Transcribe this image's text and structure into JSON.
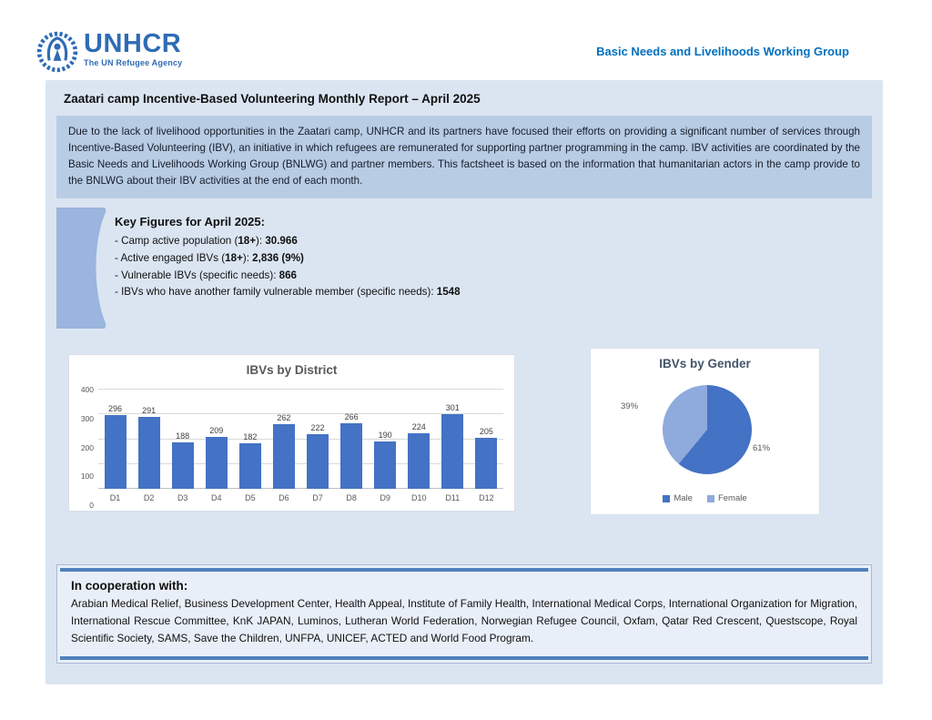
{
  "colors": {
    "unhcr_blue": "#2e6cb5",
    "header_link_blue": "#0070c0",
    "panel_bg": "#dbe5f2",
    "paragraph_bg": "#b8cce4",
    "shape_blue": "#9ab5de",
    "bar_blue": "#4472c4",
    "male_blue": "#4472c4",
    "female_blue": "#8faadc",
    "coop_rule_blue": "#4f81bd"
  },
  "header": {
    "logo_text": "UNHCR",
    "logo_tagline": "The UN Refugee Agency",
    "working_group": "Basic Needs and Livelihoods Working Group"
  },
  "report": {
    "title": "Zaatari camp Incentive-Based Volunteering Monthly Report – April 2025",
    "intro": "Due to the lack of livelihood opportunities in the Zaatari camp, UNHCR and its partners have focused their efforts on providing a significant number of services through Incentive-Based Volunteering (IBV), an initiative in which refugees are remunerated for supporting partner programming in the camp. IBV activities are coordinated by the Basic Needs and Livelihoods Working Group (BNLWG) and partner members. This factsheet is based on the information that humanitarian actors in the camp provide to the BNLWG about their IBV activities at the end of each month."
  },
  "key_figures": {
    "heading": "Key Figures for April 2025:",
    "items": [
      {
        "segments": [
          {
            "text": "- Camp active population (",
            "bold": false
          },
          {
            "text": "18+",
            "bold": true
          },
          {
            "text": "): ",
            "bold": false
          },
          {
            "text": "30.966",
            "bold": true
          }
        ]
      },
      {
        "segments": [
          {
            "text": "- Active engaged IBVs (",
            "bold": false
          },
          {
            "text": "18+",
            "bold": true
          },
          {
            "text": "): ",
            "bold": false
          },
          {
            "text": "2,836 (9%)",
            "bold": true
          }
        ]
      },
      {
        "segments": [
          {
            "text": "- Vulnerable IBVs (specific needs): ",
            "bold": false
          },
          {
            "text": "866",
            "bold": true
          }
        ]
      },
      {
        "segments": [
          {
            "text": "- IBVs who have another family vulnerable member (specific needs): ",
            "bold": false
          },
          {
            "text": "1548",
            "bold": true
          }
        ]
      }
    ]
  },
  "chart_data": [
    {
      "type": "bar",
      "title": "IBVs by District",
      "categories": [
        "D1",
        "D2",
        "D3",
        "D4",
        "D5",
        "D6",
        "D7",
        "D8",
        "D9",
        "D10",
        "D11",
        "D12"
      ],
      "values": [
        296,
        291,
        188,
        209,
        182,
        262,
        222,
        266,
        190,
        224,
        301,
        205
      ],
      "xlabel": "",
      "ylabel": "",
      "ylim": [
        0,
        400
      ],
      "yticks": [
        0,
        100,
        200,
        300,
        400
      ],
      "grid": true,
      "bar_color": "#4472c4",
      "data_labels": true
    },
    {
      "type": "pie",
      "title": "IBVs by Gender",
      "slices": [
        {
          "name": "Male",
          "pct": 61,
          "color": "#4472c4"
        },
        {
          "name": "Female",
          "pct": 39,
          "color": "#8faadc"
        }
      ],
      "start_angle_deg": 0,
      "legend_position": "bottom"
    }
  ],
  "cooperation": {
    "heading": "In cooperation with:",
    "partners": "Arabian Medical Relief, Business Development Center, Health Appeal, Institute of Family Health, International Medical Corps, International Organization for Migration, International Rescue Committee, KnK JAPAN, Luminos, Lutheran World Federation, Norwegian Refugee Council, Oxfam, Qatar Red Crescent, Questscope, Royal Scientific Society, SAMS, Save the Children, UNFPA, UNICEF, ACTED and World Food Program."
  }
}
